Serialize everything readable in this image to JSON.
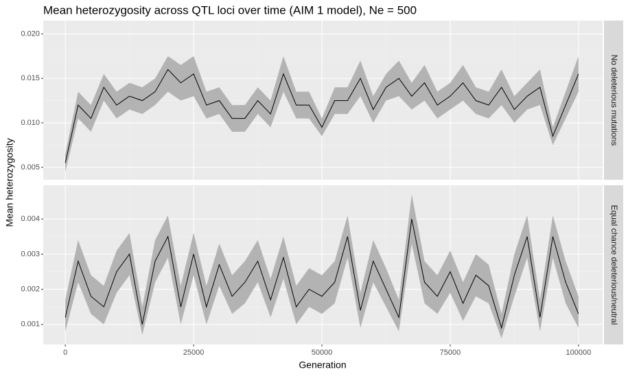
{
  "chart_data": {
    "type": "line",
    "title": "Mean heterozygosity across QTL loci over time (AIM 1 model), Ne = 500",
    "x_label": "Generation",
    "y_label": "Mean heterozygosity",
    "line_color": "#000000",
    "ribbon_color": "#b3b3b3",
    "grid": true,
    "xlim": [
      -4300,
      104700
    ],
    "xticks": [
      0,
      25000,
      50000,
      75000,
      100000
    ],
    "x": [
      0,
      2500,
      5000,
      7500,
      10000,
      12500,
      15000,
      17500,
      20000,
      22500,
      25000,
      27500,
      30000,
      32500,
      35000,
      37500,
      40000,
      42500,
      45000,
      47500,
      50000,
      52500,
      55000,
      57500,
      60000,
      62500,
      65000,
      67500,
      70000,
      72500,
      75000,
      77500,
      80000,
      82500,
      85000,
      87500,
      90000,
      92500,
      95000,
      97500,
      100000
    ],
    "panels": [
      {
        "strip": "No deleterious mutations",
        "ylim": [
          0.0036,
          0.0215
        ],
        "yticks": [
          0.005,
          {
            "value": 0.01,
            "label": "0.010"
          },
          0.015,
          {
            "value": 0.02,
            "label": "0.020"
          }
        ],
        "values": [
          0.0055,
          0.012,
          0.0105,
          0.014,
          0.012,
          0.013,
          0.0125,
          0.0135,
          0.016,
          0.0145,
          0.0155,
          0.012,
          0.0125,
          0.0105,
          0.0105,
          0.0125,
          0.011,
          0.0155,
          0.012,
          0.012,
          0.0095,
          0.0125,
          0.0125,
          0.015,
          0.0115,
          0.014,
          0.015,
          0.013,
          0.0145,
          0.012,
          0.013,
          0.0145,
          0.0125,
          0.012,
          0.014,
          0.0115,
          0.013,
          0.014,
          0.0085,
          0.012,
          0.0155
        ],
        "lower": [
          0.0045,
          0.0105,
          0.009,
          0.0125,
          0.0105,
          0.0115,
          0.011,
          0.012,
          0.0135,
          0.0125,
          0.013,
          0.0105,
          0.011,
          0.009,
          0.009,
          0.011,
          0.0095,
          0.0135,
          0.0105,
          0.0105,
          0.0085,
          0.011,
          0.011,
          0.013,
          0.01,
          0.0125,
          0.013,
          0.0115,
          0.0125,
          0.0105,
          0.0115,
          0.0125,
          0.011,
          0.0105,
          0.012,
          0.01,
          0.0115,
          0.012,
          0.0075,
          0.0105,
          0.0135
        ],
        "upper": [
          0.0065,
          0.0135,
          0.012,
          0.0155,
          0.0135,
          0.0145,
          0.014,
          0.015,
          0.0175,
          0.0165,
          0.0175,
          0.0135,
          0.014,
          0.012,
          0.012,
          0.014,
          0.0125,
          0.0175,
          0.0135,
          0.0135,
          0.0105,
          0.014,
          0.014,
          0.017,
          0.013,
          0.0155,
          0.017,
          0.0145,
          0.0165,
          0.0135,
          0.0145,
          0.0165,
          0.014,
          0.0135,
          0.016,
          0.013,
          0.0145,
          0.016,
          0.0095,
          0.0135,
          0.0175
        ]
      },
      {
        "strip": "Equal chance deleterious/neutral",
        "ylim": [
          0.00043,
          0.00496
        ],
        "yticks": [
          0.001,
          0.002,
          0.003,
          0.004
        ],
        "values": [
          0.0012,
          0.0028,
          0.0018,
          0.0015,
          0.0025,
          0.003,
          0.001,
          0.0028,
          0.0035,
          0.0015,
          0.003,
          0.0015,
          0.0027,
          0.0018,
          0.0022,
          0.0028,
          0.0017,
          0.0029,
          0.0015,
          0.002,
          0.0018,
          0.0022,
          0.0035,
          0.0014,
          0.0028,
          0.002,
          0.0012,
          0.004,
          0.0022,
          0.0018,
          0.0025,
          0.0016,
          0.0024,
          0.0021,
          0.0009,
          0.0024,
          0.0035,
          0.0012,
          0.0035,
          0.0022,
          0.0013
        ],
        "lower": [
          0.0008,
          0.0022,
          0.0013,
          0.001,
          0.0019,
          0.0024,
          0.0007,
          0.0022,
          0.0029,
          0.001,
          0.0024,
          0.001,
          0.0021,
          0.0013,
          0.0016,
          0.0022,
          0.0012,
          0.0023,
          0.001,
          0.0015,
          0.0013,
          0.0016,
          0.0029,
          0.0009,
          0.0022,
          0.0015,
          0.0008,
          0.0033,
          0.0016,
          0.0013,
          0.0019,
          0.0011,
          0.0018,
          0.0016,
          0.0006,
          0.0018,
          0.0029,
          0.0008,
          0.0029,
          0.0016,
          0.0009
        ],
        "upper": [
          0.0017,
          0.0034,
          0.0024,
          0.0021,
          0.0031,
          0.0036,
          0.0015,
          0.0034,
          0.0041,
          0.0021,
          0.0036,
          0.0021,
          0.0033,
          0.0024,
          0.0028,
          0.0034,
          0.0023,
          0.0035,
          0.0021,
          0.0026,
          0.0024,
          0.0028,
          0.0041,
          0.0019,
          0.0034,
          0.0026,
          0.0017,
          0.0047,
          0.0028,
          0.0024,
          0.0031,
          0.0022,
          0.003,
          0.0027,
          0.0013,
          0.003,
          0.0041,
          0.0017,
          0.0041,
          0.0028,
          0.0018
        ]
      }
    ]
  }
}
